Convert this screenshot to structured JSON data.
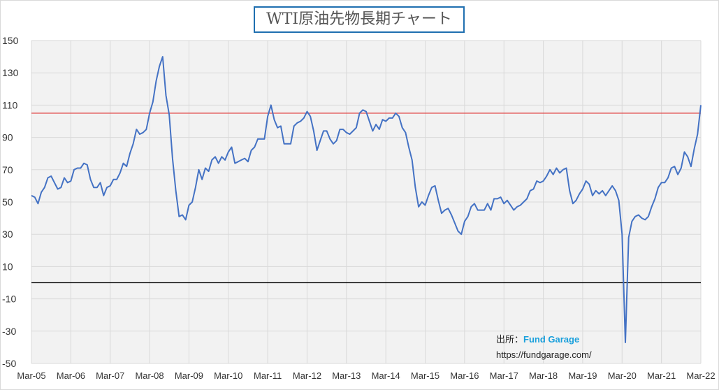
{
  "chart_data": {
    "type": "line",
    "title": "WTI原油先物長期チャート",
    "xlabel": "",
    "ylabel": "",
    "ylim": [
      -50,
      150
    ],
    "yticks": [
      150,
      130,
      110,
      90,
      70,
      50,
      30,
      10,
      -10,
      -30,
      -50
    ],
    "xticks": [
      "Mar-05",
      "Mar-06",
      "Mar-07",
      "Mar-08",
      "Mar-09",
      "Mar-10",
      "Mar-11",
      "Mar-12",
      "Mar-13",
      "Mar-14",
      "Mar-15",
      "Mar-16",
      "Mar-17",
      "Mar-18",
      "Mar-19",
      "Mar-20",
      "Mar-21",
      "Mar-22"
    ],
    "grid": true,
    "series": [
      {
        "name": "WTI",
        "color": "#4472c4",
        "frequency": "monthly",
        "start": "Mar-05",
        "values": [
          54,
          53,
          49,
          56,
          59,
          65,
          66,
          62,
          58,
          59,
          65,
          62,
          63,
          70,
          71,
          71,
          74,
          73,
          64,
          59,
          59,
          62,
          54,
          59,
          60,
          64,
          64,
          68,
          74,
          72,
          80,
          86,
          95,
          92,
          93,
          95,
          105,
          112,
          125,
          134,
          140,
          116,
          104,
          77,
          57,
          41,
          42,
          39,
          48,
          50,
          59,
          70,
          64,
          71,
          69,
          76,
          78,
          74,
          78,
          76,
          81,
          84,
          74,
          75,
          76,
          77,
          75,
          82,
          84,
          89,
          89,
          89,
          103,
          110,
          101,
          96,
          97,
          86,
          86,
          86,
          97,
          99,
          100,
          102,
          106,
          103,
          94,
          82,
          88,
          94,
          94,
          89,
          86,
          88,
          95,
          95,
          93,
          92,
          94,
          96,
          105,
          107,
          106,
          100,
          94,
          98,
          95,
          101,
          100,
          102,
          102,
          105,
          103,
          96,
          93,
          84,
          76,
          59,
          47,
          50,
          48,
          54,
          59,
          60,
          51,
          43,
          45,
          46,
          42,
          37,
          32,
          30,
          38,
          41,
          47,
          49,
          45,
          45,
          45,
          49,
          45,
          52,
          52,
          53,
          49,
          51,
          48,
          45,
          47,
          48,
          50,
          52,
          57,
          58,
          63,
          62,
          63,
          66,
          70,
          67,
          71,
          68,
          70,
          71,
          57,
          49,
          51,
          55,
          58,
          63,
          61,
          54,
          57,
          55,
          57,
          54,
          57,
          60,
          57,
          51,
          30,
          -37,
          28,
          38,
          41,
          42,
          40,
          39,
          41,
          47,
          52,
          59,
          62,
          62,
          65,
          71,
          72,
          67,
          71,
          81,
          78,
          72,
          83,
          92,
          110
        ]
      }
    ],
    "reference_lines": [
      {
        "value": 105,
        "color": "#e03030"
      },
      {
        "value": 0,
        "color": "#000000"
      }
    ]
  },
  "source": {
    "label": "出所：",
    "brand": "Fund Garage",
    "url": "https://fundgarage.com/"
  }
}
